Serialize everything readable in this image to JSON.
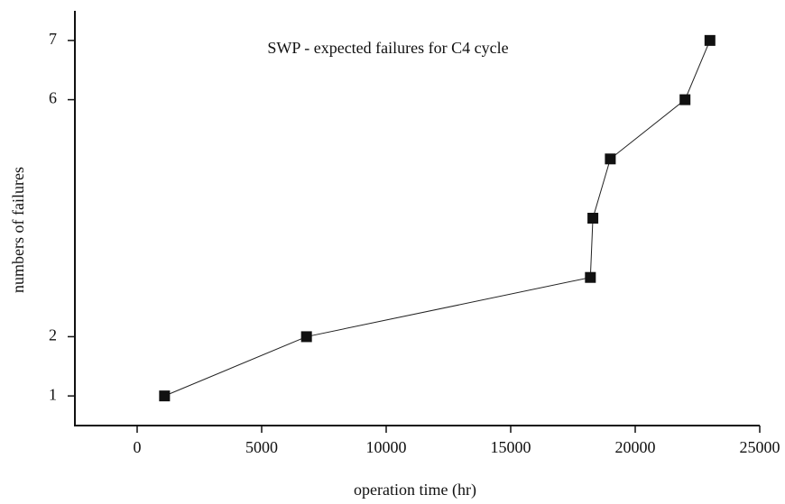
{
  "chart_data": {
    "type": "line",
    "title": "SWP - expected failures for C4 cycle",
    "x_label": "operation time (hr)",
    "y_label": "numbers of failures",
    "x": [
      1100,
      6800,
      18200,
      18300,
      19000,
      22000,
      23000
    ],
    "series": [
      {
        "color": "#222222",
        "values": [
          1,
          2,
          3,
          4,
          5,
          6,
          7
        ]
      }
    ],
    "xlim": [
      -2500,
      25000
    ],
    "xticks": [
      0,
      5000,
      10000,
      15000,
      20000,
      25000
    ],
    "ylim": [
      0.5,
      7.5
    ],
    "yticks": [
      1,
      2,
      6,
      7
    ]
  }
}
